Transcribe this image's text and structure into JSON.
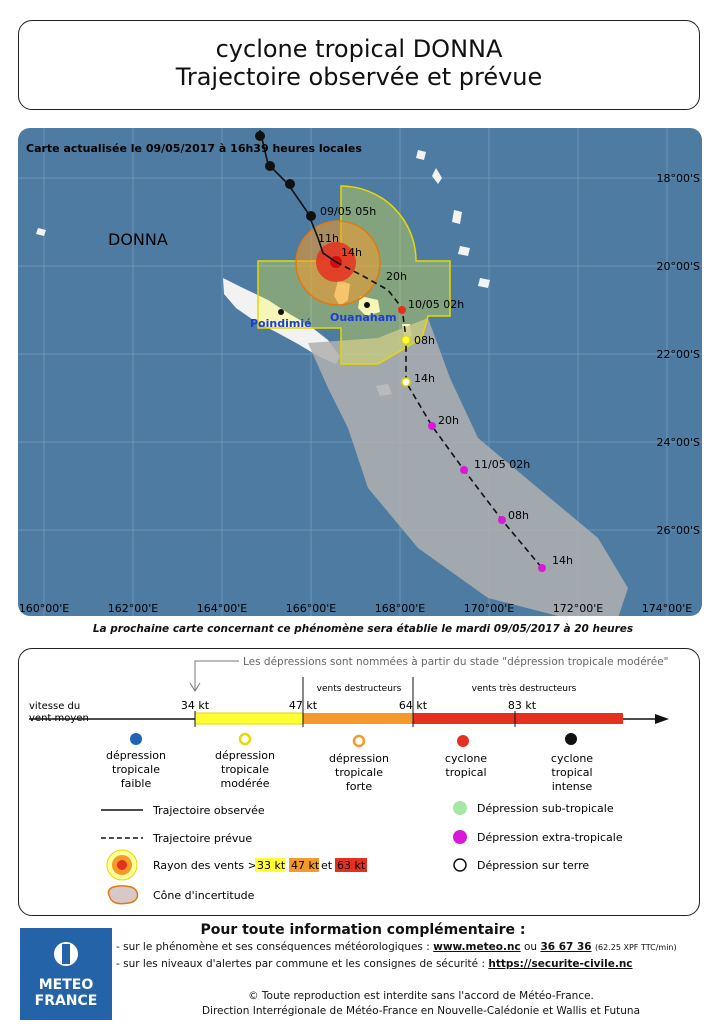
{
  "header": {
    "line1": "cyclone tropical DONNA",
    "line2": "Trajectoire observée et prévue"
  },
  "map": {
    "update_text": "Carte actualisée le 09/05/2017 à 16h39 heures locales",
    "storm_label": "DONNA",
    "lat_labels": [
      "18°00'S",
      "20°00'S",
      "22°00'S",
      "24°00'S",
      "26°00'S"
    ],
    "lon_labels": [
      "160°00'E",
      "162°00'E",
      "164°00'E",
      "166°00'E",
      "168°00'E",
      "170°00'E",
      "172°00'E",
      "174°00'E"
    ],
    "places": [
      "Poindimié",
      "Ouanaham"
    ],
    "track_labels": [
      "09/05 05h",
      "11h",
      "14h",
      "20h",
      "10/05 02h",
      "08h",
      "14h",
      "20h",
      "11/05 02h",
      "08h",
      "14h"
    ],
    "colors": {
      "sea": "#4e7ba1",
      "land": "#f2f2f2",
      "cone": "#b0b0b0",
      "r34": "#ffff33",
      "r47": "#f59a2a",
      "r63": "#e53020",
      "extra": "#d81ad8"
    }
  },
  "next_map_note": "La prochaine carte concernant ce phénomène sera établie le mardi 09/05/2017 à 20 heures",
  "legend": {
    "naming_note": "Les dépressions sont nommées à partir du stade \"dépression tropicale modérée\"",
    "axis_label_1": "vitesse du",
    "axis_label_2": "vent moyen",
    "thresholds": [
      "34 kt",
      "47 kt",
      "64 kt",
      "83 kt"
    ],
    "zone_destructive": "vents destructeurs",
    "zone_very_destructive": "vents très destructeurs",
    "categories": [
      [
        "dépression",
        "tropicale",
        "faible"
      ],
      [
        "dépression",
        "tropicale",
        "modérée"
      ],
      [
        "dépression",
        "tropicale",
        "forte"
      ],
      [
        "cyclone",
        "tropical"
      ],
      [
        "cyclone",
        "tropical",
        "intense"
      ]
    ],
    "observed_track": "Trajectoire observée",
    "forecast_track": "Trajectoire prévue",
    "wind_radius_prefix": "Rayon des vents >",
    "wind_radius_values": [
      "33 kt",
      "47 kt",
      "63 kt"
    ],
    "wind_radius_joiner": "et",
    "cone": "Cône d'incertitude",
    "subtropical": "Dépression sub-tropicale",
    "extratropical": "Dépression extra-tropicale",
    "overland": "Dépression sur terre"
  },
  "footer": {
    "title": "Pour toute information complémentaire :",
    "line1_prefix": "- sur le phénomène et ses conséquences météorologiques :",
    "website": "www.meteo.nc",
    "line1_joiner": "ou",
    "phone": "36 67 36",
    "phone_price": "(62.25 XPF TTC/min)",
    "line2_prefix": "- sur les niveaux d'alertes par commune et les consignes de sécurité :",
    "security_site": "https://securite-civile.nc",
    "copyright": "© Toute reproduction est interdite sans l'accord de Météo-France.",
    "direction": "Direction Interrégionale de Météo-France en Nouvelle-Calédonie et Wallis et Futuna",
    "logo_line1": "METEO",
    "logo_line2": "FRANCE"
  }
}
